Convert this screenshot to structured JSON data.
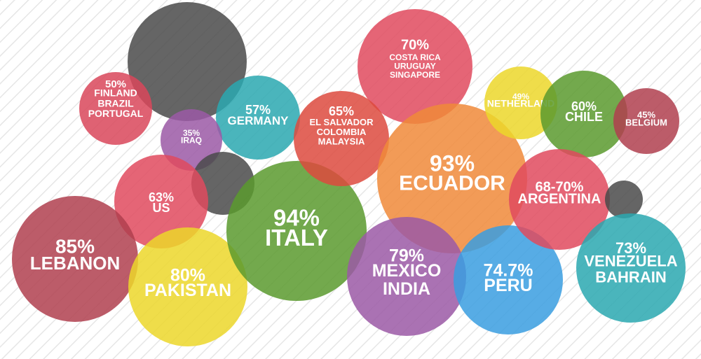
{
  "bubbles": [
    {
      "percent": "50%",
      "countries": [
        "FINLAND",
        "BRAZIL",
        "PORTUGAL"
      ]
    },
    {
      "percent": "35%",
      "countries": [
        "IRAQ"
      ]
    },
    {
      "percent": "57%",
      "countries": [
        "GERMANY"
      ]
    },
    {
      "percent": "63%",
      "countries": [
        "US"
      ]
    },
    {
      "percent": "85%",
      "countries": [
        "LEBANON"
      ]
    },
    {
      "percent": "80%",
      "countries": [
        "PAKISTAN"
      ]
    },
    {
      "percent": "94%",
      "countries": [
        "ITALY"
      ]
    },
    {
      "percent": "65%",
      "countries": [
        "EL SALVADOR",
        "COLOMBIA",
        "MALAYSIA"
      ]
    },
    {
      "percent": "70%",
      "countries": [
        "COSTA RICA",
        "URUGUAY",
        "SINGAPORE"
      ]
    },
    {
      "percent": "93%",
      "countries": [
        "ECUADOR"
      ]
    },
    {
      "percent": "79%",
      "countries": [
        "MEXICO",
        "INDIA"
      ]
    },
    {
      "percent": "74.7%",
      "countries": [
        "PERU"
      ]
    },
    {
      "percent": "49%",
      "countries": [
        "NETHERLAND"
      ]
    },
    {
      "percent": "60%",
      "countries": [
        "CHILE"
      ]
    },
    {
      "percent": "45%",
      "countries": [
        "BELGIUM"
      ]
    },
    {
      "percent": "68-70%",
      "countries": [
        "ARGENTINA"
      ]
    },
    {
      "percent": "73%",
      "countries": [
        "VENEZUELA",
        "BAHRAIN"
      ]
    }
  ]
}
